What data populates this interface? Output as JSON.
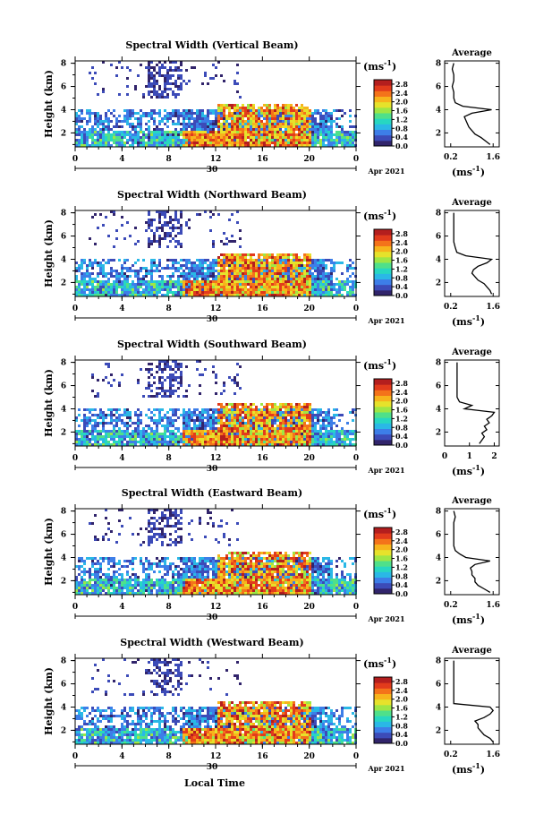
{
  "figure": {
    "xlabel": "Local Time",
    "date_label": "Apr 2021",
    "day_label": "30",
    "unit_label": "(ms",
    "unit_exp": "-1",
    "ylabel": "Height (km)",
    "avg_title": "Average",
    "avg_unit": "(ms",
    "colors": [
      "#31246b",
      "#3c4bb8",
      "#3d7ee8",
      "#2ab8e6",
      "#27d7c1",
      "#4fe08a",
      "#9ee645",
      "#e6e22b",
      "#f7b41c",
      "#f4731a",
      "#e23b1c",
      "#b41e1e"
    ]
  },
  "chart_data": [
    {
      "type": "heatmap",
      "title": "Spectral Width (Vertical Beam)",
      "x_ticks": [
        "0",
        "4",
        "8",
        "12",
        "16",
        "20",
        "0"
      ],
      "y_ticks": [
        "2",
        "4",
        "6",
        "8"
      ],
      "xlim": [
        0,
        24
      ],
      "ylim": [
        0.8,
        8.2
      ],
      "colorbar_ticks": [
        "0.0",
        "0.4",
        "0.8",
        "1.2",
        "1.6",
        "2.0",
        "2.4",
        "2.8"
      ],
      "colorbar_range": [
        0,
        3.0
      ],
      "average_profile": {
        "title": "Average",
        "x_ticks": [
          "0.2",
          "1.6"
        ],
        "xlim": [
          0,
          1.8
        ],
        "y_ticks": [
          "2",
          "4",
          "6",
          "8"
        ],
        "heights": [
          1.0,
          1.3,
          1.6,
          1.9,
          2.2,
          2.5,
          2.8,
          3.1,
          3.4,
          3.7,
          4.0,
          4.3,
          4.6,
          5.0,
          5.5,
          6.0,
          6.5,
          7.0,
          7.5,
          8.0
        ],
        "values": [
          1.5,
          1.35,
          1.2,
          1.0,
          0.9,
          0.8,
          0.75,
          0.7,
          0.65,
          0.9,
          1.55,
          0.6,
          0.35,
          0.3,
          0.3,
          0.25,
          0.3,
          0.3,
          0.25,
          0.3
        ]
      }
    },
    {
      "type": "heatmap",
      "title": "Spectral Width (Northward Beam)",
      "x_ticks": [
        "0",
        "4",
        "8",
        "12",
        "16",
        "20",
        "0"
      ],
      "y_ticks": [
        "2",
        "4",
        "6",
        "8"
      ],
      "xlim": [
        0,
        24
      ],
      "ylim": [
        0.8,
        8.2
      ],
      "colorbar_ticks": [
        "0.0",
        "0.4",
        "0.8",
        "1.2",
        "1.6",
        "2.0",
        "2.4",
        "2.8"
      ],
      "colorbar_range": [
        0,
        3.0
      ],
      "average_profile": {
        "title": "Average",
        "x_ticks": [
          "0.2",
          "1.6"
        ],
        "xlim": [
          0,
          1.8
        ],
        "y_ticks": [
          "2",
          "4",
          "6",
          "8"
        ],
        "heights": [
          1.0,
          1.3,
          1.6,
          1.9,
          2.2,
          2.5,
          2.8,
          3.1,
          3.4,
          3.7,
          4.0,
          4.3,
          4.6,
          5.0,
          5.5,
          6.0,
          6.5,
          7.0,
          7.5,
          8.0
        ],
        "values": [
          1.55,
          1.5,
          1.4,
          1.3,
          1.1,
          1.0,
          0.9,
          0.95,
          1.1,
          1.4,
          1.55,
          0.7,
          0.4,
          0.35,
          0.3,
          0.3,
          0.3,
          0.3,
          0.3,
          0.3
        ]
      }
    },
    {
      "type": "heatmap",
      "title": "Spectral Width (Southward Beam)",
      "x_ticks": [
        "0",
        "4",
        "8",
        "12",
        "16",
        "20",
        "0"
      ],
      "y_ticks": [
        "2",
        "4",
        "6",
        "8"
      ],
      "xlim": [
        0,
        24
      ],
      "ylim": [
        0.8,
        8.2
      ],
      "colorbar_ticks": [
        "0.0",
        "0.4",
        "0.8",
        "1.2",
        "1.6",
        "2.0",
        "2.4",
        "2.8"
      ],
      "colorbar_range": [
        0,
        3.0
      ],
      "average_profile": {
        "title": "Average",
        "x_ticks": [
          "0",
          "1",
          "2"
        ],
        "xlim": [
          0,
          2.2
        ],
        "y_ticks": [
          "2",
          "4",
          "6",
          "8"
        ],
        "heights": [
          1.0,
          1.3,
          1.6,
          1.9,
          2.2,
          2.5,
          2.8,
          3.1,
          3.4,
          3.7,
          4.0,
          4.3,
          4.6,
          5.0,
          5.5,
          6.0,
          6.5,
          7.0,
          7.5,
          8.0
        ],
        "values": [
          1.4,
          1.5,
          1.6,
          1.5,
          1.7,
          1.6,
          1.8,
          1.7,
          1.9,
          2.0,
          0.8,
          1.1,
          0.6,
          0.5,
          0.5,
          0.5,
          0.5,
          0.5,
          0.5,
          0.5
        ]
      }
    },
    {
      "type": "heatmap",
      "title": "Spectral Width (Eastward Beam)",
      "x_ticks": [
        "0",
        "4",
        "8",
        "12",
        "16",
        "20",
        "0"
      ],
      "y_ticks": [
        "2",
        "4",
        "6",
        "8"
      ],
      "xlim": [
        0,
        24
      ],
      "ylim": [
        0.8,
        8.2
      ],
      "colorbar_ticks": [
        "0.0",
        "0.4",
        "0.8",
        "1.2",
        "1.6",
        "2.0",
        "2.4",
        "2.8"
      ],
      "colorbar_range": [
        0,
        3.0
      ],
      "average_profile": {
        "title": "Average",
        "x_ticks": [
          "0.2",
          "1.6"
        ],
        "xlim": [
          0,
          1.8
        ],
        "y_ticks": [
          "2",
          "4",
          "6",
          "8"
        ],
        "heights": [
          1.0,
          1.3,
          1.6,
          1.9,
          2.2,
          2.5,
          2.8,
          3.1,
          3.4,
          3.7,
          4.0,
          4.3,
          4.6,
          5.0,
          5.5,
          6.0,
          6.5,
          7.0,
          7.5,
          8.0
        ],
        "values": [
          1.5,
          1.3,
          1.1,
          1.0,
          1.0,
          0.9,
          0.9,
          0.85,
          1.0,
          1.5,
          0.7,
          0.5,
          0.35,
          0.3,
          0.3,
          0.3,
          0.3,
          0.3,
          0.35,
          0.3
        ]
      }
    },
    {
      "type": "heatmap",
      "title": "Spectral Width (Westward Beam)",
      "x_ticks": [
        "0",
        "4",
        "8",
        "12",
        "16",
        "20",
        "0"
      ],
      "y_ticks": [
        "2",
        "4",
        "6",
        "8"
      ],
      "xlim": [
        0,
        24
      ],
      "ylim": [
        0.8,
        8.2
      ],
      "colorbar_ticks": [
        "0.0",
        "0.4",
        "0.8",
        "1.2",
        "1.6",
        "2.0",
        "2.4",
        "2.8"
      ],
      "colorbar_range": [
        0,
        3.0
      ],
      "average_profile": {
        "title": "Average",
        "x_ticks": [
          "0.2",
          "1.6"
        ],
        "xlim": [
          0,
          1.8
        ],
        "y_ticks": [
          "2",
          "4",
          "6",
          "8"
        ],
        "heights": [
          1.0,
          1.3,
          1.6,
          1.9,
          2.2,
          2.5,
          2.8,
          3.1,
          3.4,
          3.7,
          4.0,
          4.3,
          4.6,
          5.0,
          5.5,
          6.0,
          6.5,
          7.0,
          7.5,
          8.0
        ],
        "values": [
          1.6,
          1.5,
          1.3,
          1.2,
          1.1,
          1.1,
          1.0,
          1.3,
          1.5,
          1.6,
          1.5,
          0.3,
          0.3,
          0.3,
          0.3,
          0.3,
          0.3,
          0.3,
          0.3,
          0.3
        ]
      }
    }
  ]
}
